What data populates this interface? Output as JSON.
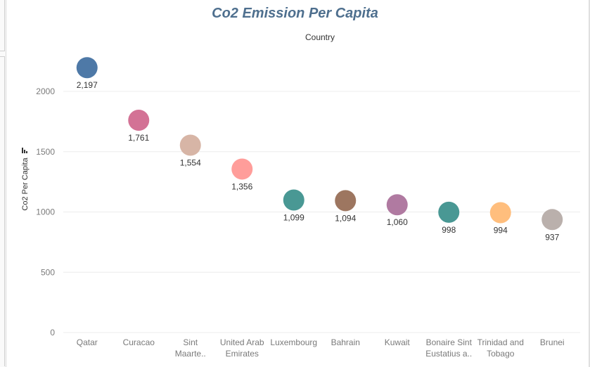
{
  "chart_data": {
    "type": "scatter",
    "title": "Co2 Emission Per Capita",
    "column_header": "Country",
    "ylabel": "Co2 Per Capita",
    "xlabel": "",
    "ylim": [
      0,
      2300
    ],
    "yticks": [
      0,
      500,
      1000,
      1500,
      2000
    ],
    "ytick_labels": [
      "0",
      "500",
      "1000",
      "1500",
      "2000"
    ],
    "grid": true,
    "points": [
      {
        "category": "Qatar",
        "label_lines": [
          "Qatar"
        ],
        "value": 2197,
        "data_label": "2,197",
        "color": "#4e79a7"
      },
      {
        "category": "Curacao",
        "label_lines": [
          "Curacao"
        ],
        "value": 1761,
        "data_label": "1,761",
        "color": "#d37295"
      },
      {
        "category": "Sint Maarte..",
        "label_lines": [
          "Sint",
          "Maarte.."
        ],
        "value": 1554,
        "data_label": "1,554",
        "color": "#d7b5a6"
      },
      {
        "category": "United Arab Emirates",
        "label_lines": [
          "United Arab",
          "Emirates"
        ],
        "value": 1356,
        "data_label": "1,356",
        "color": "#ff9d9a"
      },
      {
        "category": "Luxembourg",
        "label_lines": [
          "Luxembourg"
        ],
        "value": 1099,
        "data_label": "1,099",
        "color": "#499894"
      },
      {
        "category": "Bahrain",
        "label_lines": [
          "Bahrain"
        ],
        "value": 1094,
        "data_label": "1,094",
        "color": "#9d7660"
      },
      {
        "category": "Kuwait",
        "label_lines": [
          "Kuwait"
        ],
        "value": 1060,
        "data_label": "1,060",
        "color": "#b07aa1"
      },
      {
        "category": "Bonaire Sint Eustatius a..",
        "label_lines": [
          "Bonaire Sint",
          "Eustatius a.."
        ],
        "value": 998,
        "data_label": "998",
        "color": "#499894"
      },
      {
        "category": "Trinidad and Tobago",
        "label_lines": [
          "Trinidad and",
          "Tobago"
        ],
        "value": 994,
        "data_label": "994",
        "color": "#ffbe7d"
      },
      {
        "category": "Brunei",
        "label_lines": [
          "Brunei"
        ],
        "value": 937,
        "data_label": "937",
        "color": "#bab0ac"
      }
    ]
  },
  "icons": {
    "sort": "sort-descending-icon"
  },
  "colors": {
    "title": "#4e6f8e",
    "grid": "#ececec",
    "axis_text": "#7a7a7a"
  }
}
